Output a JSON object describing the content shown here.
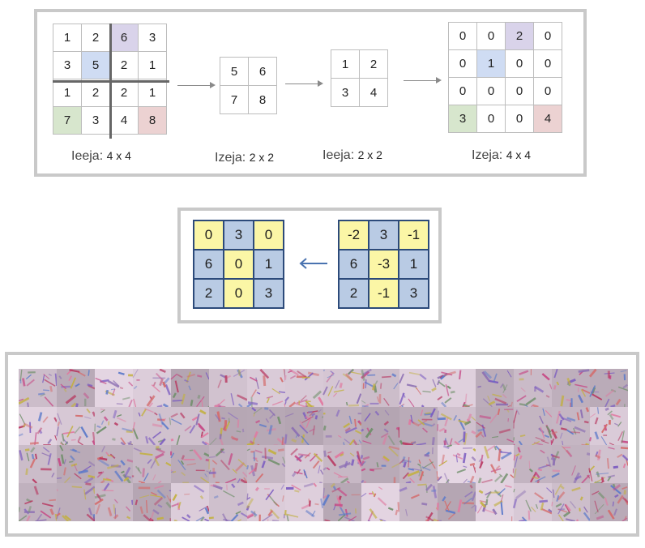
{
  "colors": {
    "purple": "#d9d3ea",
    "blue": "#cfdcf3",
    "green": "#d7e6cd",
    "red": "#ecd2d2",
    "yellow": "#fbf6a6",
    "slate": "#b9cbe4",
    "arrow_blue": "#4a73b0"
  },
  "pooling": {
    "input": {
      "rows": [
        [
          "1",
          "2",
          "6",
          "3"
        ],
        [
          "3",
          "5",
          "2",
          "1"
        ],
        [
          "1",
          "2",
          "2",
          "1"
        ],
        [
          "7",
          "3",
          "4",
          "8"
        ]
      ],
      "caption_word": "Ieeja:",
      "caption_size": "4 x 4"
    },
    "pooled": {
      "rows": [
        [
          "5",
          "6"
        ],
        [
          "7",
          "8"
        ]
      ],
      "caption_word": "Izeja:",
      "caption_size": "2 x 2"
    },
    "unpool_input": {
      "rows": [
        [
          "1",
          "2"
        ],
        [
          "3",
          "4"
        ]
      ],
      "caption_word": "Ieeja:",
      "caption_size": "2 x 2"
    },
    "unpooled": {
      "rows": [
        [
          "0",
          "0",
          "2",
          "0"
        ],
        [
          "0",
          "1",
          "0",
          "0"
        ],
        [
          "0",
          "0",
          "0",
          "0"
        ],
        [
          "3",
          "0",
          "0",
          "4"
        ]
      ],
      "caption_word": "Izeja:",
      "caption_size": "4 x 4"
    }
  },
  "relu": {
    "output": [
      [
        "0",
        "3",
        "0"
      ],
      [
        "6",
        "0",
        "1"
      ],
      [
        "2",
        "0",
        "3"
      ]
    ],
    "input": [
      [
        "-2",
        "3",
        "-1"
      ],
      [
        "6",
        "-3",
        "1"
      ],
      [
        "2",
        "-1",
        "3"
      ]
    ]
  },
  "features": {
    "rows": 4,
    "cols": 16
  }
}
